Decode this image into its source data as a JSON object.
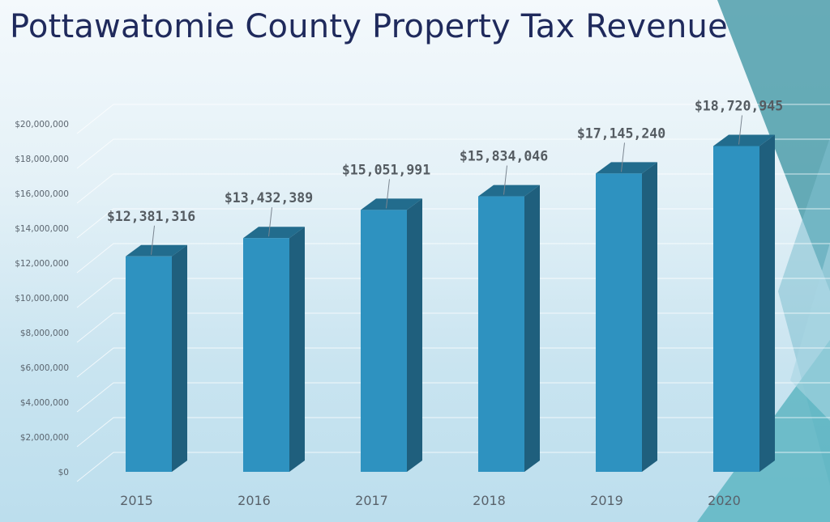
{
  "title": "Pottawatomie County Property Tax Revenue",
  "colors": {
    "bar_front": "#2e92c0",
    "bar_side": "#1f5f7d",
    "bar_top": "#226c8d",
    "title": "#1f2a5c",
    "accent_triangle": "#4a9aa8"
  },
  "chart_data": {
    "type": "bar",
    "title": "Pottawatomie County Property Tax Revenue",
    "xlabel": "",
    "ylabel": "",
    "categories": [
      "2015",
      "2016",
      "2017",
      "2018",
      "2019",
      "2020"
    ],
    "values": [
      12381316,
      13432389,
      15051991,
      15834046,
      17145240,
      18720945
    ],
    "data_labels": [
      "$12,381,316",
      "$13,432,389",
      "$15,051,991",
      "$15,834,046",
      "$17,145,240",
      "$18,720,945"
    ],
    "y_ticks": [
      "$0",
      "$2,000,000",
      "$4,000,000",
      "$6,000,000",
      "$8,000,000",
      "$10,000,000",
      "$12,000,000",
      "$14,000,000",
      "$16,000,000",
      "$18,000,000",
      "$20,000,000"
    ],
    "ylim": [
      0,
      20000000
    ],
    "grid": true,
    "legend": "none",
    "style": "3d-column"
  }
}
